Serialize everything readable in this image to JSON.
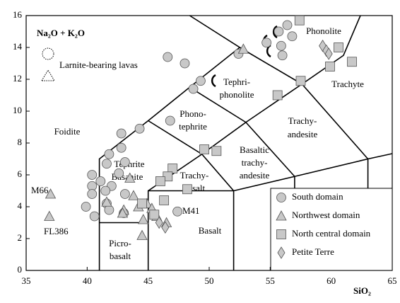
{
  "chart_data": {
    "type": "scatter",
    "ylabel": "Na₂O + K₂O",
    "xlabel": "SiO₂",
    "xlim": [
      35,
      65
    ],
    "xticks": [
      35,
      40,
      45,
      50,
      55,
      60,
      65
    ],
    "ylim": [
      0,
      16
    ],
    "yticks": [
      0,
      2,
      4,
      6,
      8,
      10,
      12,
      14,
      16
    ],
    "legend": "lower right",
    "larnite_label": "Larnite-bearing lavas",
    "fields": [
      [
        "Foidite"
      ],
      [
        "Tephrite",
        "Basanite"
      ],
      [
        "Phono-",
        "tephrite"
      ],
      [
        "Tephri-",
        "phonolite"
      ],
      [
        "Phonolite"
      ],
      [
        "Trachyte"
      ],
      [
        "Trachy-",
        "andesite"
      ],
      [
        "Basaltic",
        "trachy-",
        "andesite"
      ],
      [
        "Trachy-",
        "basalt"
      ],
      [
        "Basalt"
      ],
      [
        "Picro-",
        "basalt"
      ]
    ],
    "annotations": [
      "M66",
      "FL386",
      "M41"
    ],
    "series": [
      {
        "name": "South domain",
        "marker": "circle",
        "color": "#c8c8c8",
        "x": [
          46.6,
          48.0,
          52.4,
          48.7,
          46.8,
          44.3,
          42.8,
          42.8,
          41.8,
          41.6,
          43.1,
          42.6,
          40.4,
          41.1,
          40.4,
          42.0,
          40.4,
          41.5,
          43.1,
          41.6,
          39.9,
          43.0,
          41.8,
          47.4,
          40.6,
          56.4,
          55.7,
          56.8,
          55.9,
          56.0,
          54.7,
          49.3
        ],
        "values": [
          13.4,
          13.0,
          13.6,
          11.4,
          9.4,
          8.9,
          8.6,
          7.7,
          7.3,
          6.7,
          6.8,
          6.1,
          6.0,
          5.6,
          5.3,
          5.3,
          4.8,
          5.0,
          4.8,
          4.2,
          4.0,
          3.6,
          3.8,
          3.7,
          3.4,
          15.4,
          15.0,
          14.7,
          14.1,
          13.5,
          14.3,
          11.9
        ]
      },
      {
        "name": "Northwest domain",
        "marker": "triangle",
        "color": "#c8c8c8",
        "x": [
          37.0,
          36.9,
          52.8,
          43.5,
          43.8,
          44.2,
          43.0,
          44.9,
          45.3,
          44.6,
          45.7,
          44.5,
          42.9,
          41.6,
          46.5
        ],
        "values": [
          4.8,
          3.4,
          13.9,
          5.8,
          4.7,
          4.0,
          3.8,
          4.2,
          3.9,
          3.2,
          3.4,
          2.2,
          3.6,
          4.3,
          3.0
        ]
      },
      {
        "name": "North central domain",
        "marker": "square",
        "color": "#c8c8c8",
        "x": [
          57.4,
          60.6,
          59.9,
          61.7,
          57.5,
          55.6,
          49.6,
          50.6,
          47.0,
          46.6,
          46.0,
          48.2,
          46.3,
          45.5,
          44.5
        ],
        "values": [
          15.7,
          14.0,
          12.8,
          13.1,
          11.9,
          11.0,
          7.6,
          7.5,
          6.4,
          5.9,
          5.6,
          5.1,
          4.4,
          3.5,
          4.2
        ]
      },
      {
        "name": "Petite Terre",
        "marker": "diamond",
        "color": "#c8c8c8",
        "x": [
          59.3,
          59.6,
          59.8,
          46.4,
          45.9
        ],
        "values": [
          14.1,
          13.8,
          13.6,
          2.7,
          3.0
        ]
      }
    ]
  }
}
